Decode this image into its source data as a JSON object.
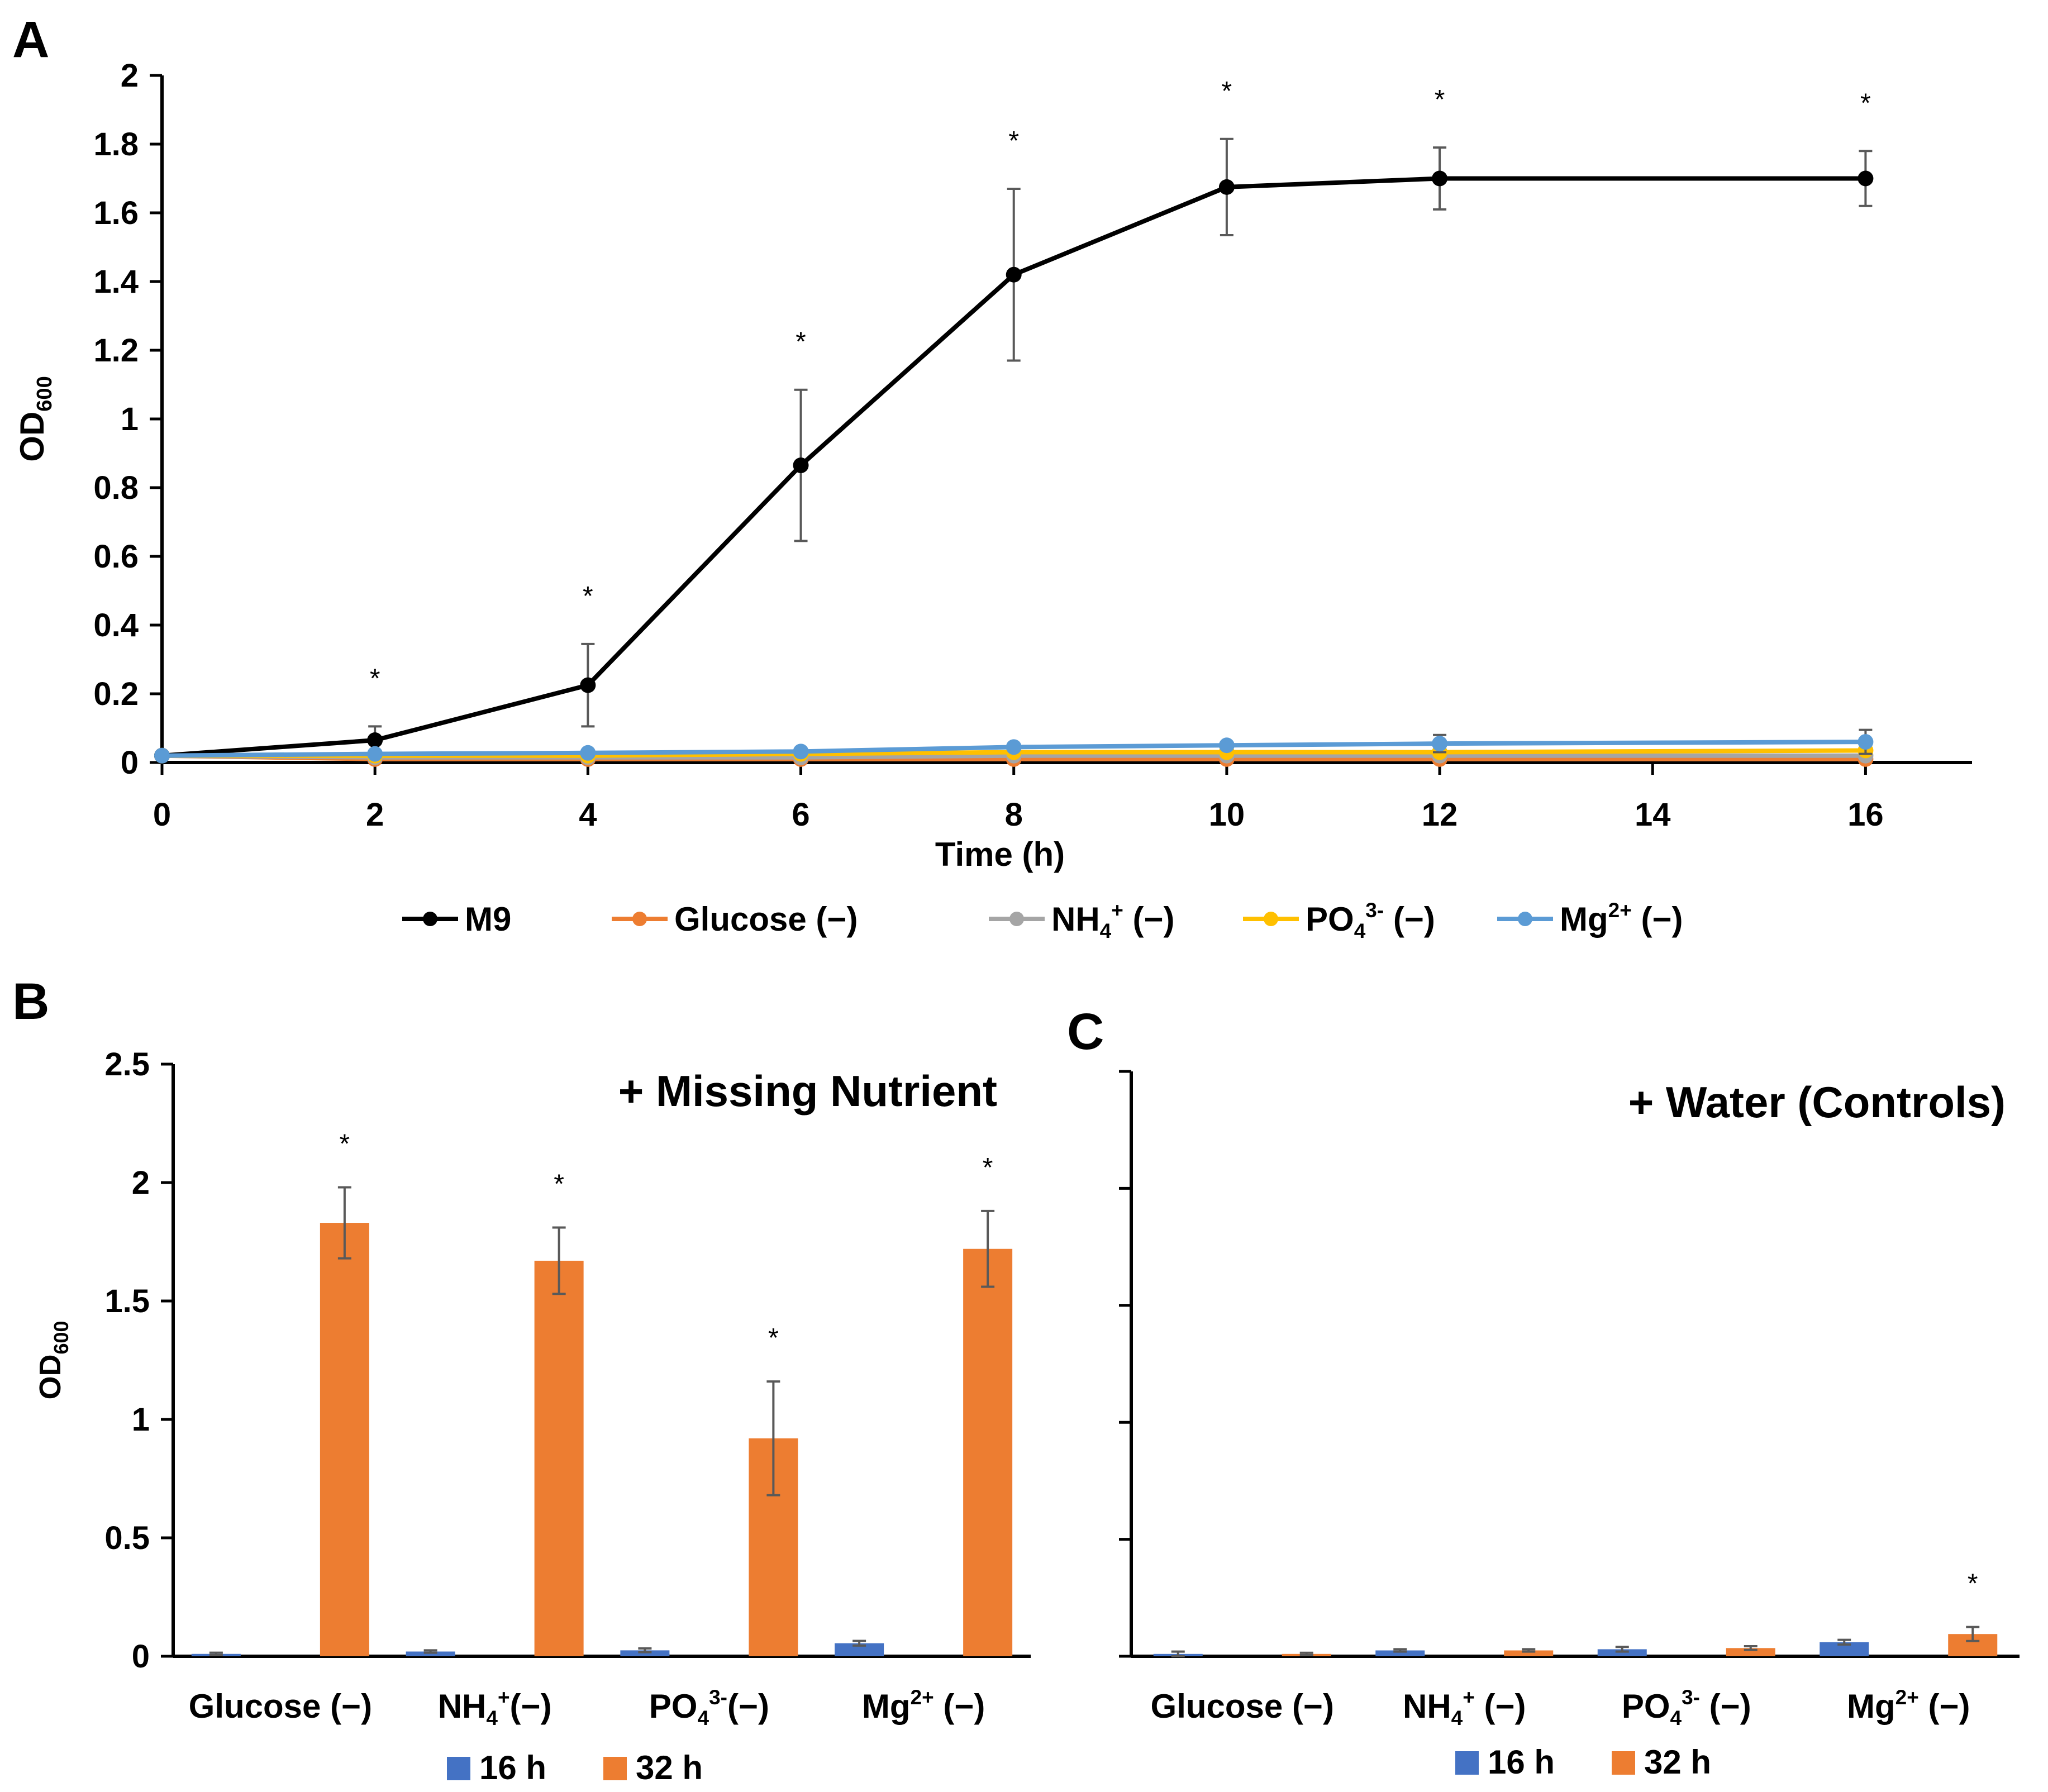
{
  "colors": {
    "M9": "#000000",
    "Glucose (−)": "#ED7D31",
    "NH4+ (−)": "#A5A5A5",
    "PO43- (−)": "#FFC000",
    "Mg2+ (−)": "#5B9BD5",
    "16 h": "#4472C4",
    "32 h": "#ED7D31",
    "errorbar": "#595959"
  },
  "chart_data": [
    {
      "panel": "A",
      "type": "line",
      "xlabel": "Time (h)",
      "ylabel": "OD",
      "ylabel_sub": "600",
      "xlim": [
        0,
        17
      ],
      "ylim": [
        0,
        2
      ],
      "x_ticks": [
        "0",
        "2",
        "4",
        "6",
        "8",
        "10",
        "12",
        "14",
        "16"
      ],
      "y_ticks": [
        "0",
        "0.2",
        "0.4",
        "0.6",
        "0.8",
        "1",
        "1.2",
        "1.4",
        "1.6",
        "1.8",
        "2"
      ],
      "x": [
        0,
        2,
        4,
        6,
        8,
        10,
        12,
        16
      ],
      "legend": "bottom",
      "series": [
        {
          "name": "M9",
          "label_main": "M9",
          "label_sup": "",
          "label_sub": "",
          "label_tail": "",
          "values": [
            0.02,
            0.065,
            0.225,
            0.865,
            1.42,
            1.675,
            1.7,
            1.7
          ],
          "errors": [
            0.005,
            0.04,
            0.12,
            0.22,
            0.25,
            0.14,
            0.09,
            0.08
          ]
        },
        {
          "name": "Glucose (−)",
          "label_main": "Glucose (−)",
          "label_sup": "",
          "label_sub": "",
          "label_tail": "",
          "values": [
            0.02,
            0.01,
            0.01,
            0.01,
            0.01,
            0.01,
            0.01,
            0.01
          ],
          "errors": [
            0,
            0,
            0,
            0,
            0,
            0,
            0,
            0
          ]
        },
        {
          "name": "NH4+ (−)",
          "label_main": "NH",
          "label_sub": "4",
          "label_sup": "+",
          "label_tail": " (−)",
          "values": [
            0.02,
            0.015,
            0.015,
            0.015,
            0.02,
            0.02,
            0.02,
            0.02
          ],
          "errors": [
            0,
            0,
            0,
            0,
            0,
            0,
            0,
            0
          ]
        },
        {
          "name": "PO43- (−)",
          "label_main": "PO",
          "label_sub": "4",
          "label_sup": "3-",
          "label_tail": " (−)",
          "values": [
            0.02,
            0.02,
            0.02,
            0.025,
            0.03,
            0.03,
            0.03,
            0.035
          ],
          "errors": [
            0,
            0,
            0,
            0,
            0,
            0,
            0,
            0
          ]
        },
        {
          "name": "Mg2+ (−)",
          "label_main": "Mg",
          "label_sub": "",
          "label_sup": "2+",
          "label_tail": " (−)",
          "values": [
            0.02,
            0.025,
            0.028,
            0.032,
            0.045,
            0.05,
            0.055,
            0.06
          ],
          "errors": [
            0,
            0,
            0,
            0,
            0,
            0,
            0.025,
            0.035
          ]
        }
      ],
      "significance": [
        "",
        "*",
        "*",
        "*",
        "*",
        "*",
        "*",
        "*"
      ]
    },
    {
      "panel": "B",
      "type": "bar",
      "title": "+ Missing Nutrient",
      "ylabel": "OD",
      "ylabel_sub": "600",
      "ylim": [
        0,
        2.5
      ],
      "y_ticks": [
        "0",
        "0.5",
        "1",
        "1.5",
        "2",
        "2.5"
      ],
      "categories": [
        "Glucose (−)",
        "NH4+ (−)",
        "PO43-(−)",
        "Mg2+ (−)"
      ],
      "category_labels": [
        {
          "main": "Glucose (−)",
          "sub": "",
          "sup": "",
          "tail": ""
        },
        {
          "main": "NH",
          "sub": "4",
          "sup": "+",
          "tail": "(−)"
        },
        {
          "main": "PO",
          "sub": "4",
          "sup": "3-",
          "tail": "(−)"
        },
        {
          "main": "Mg",
          "sub": "",
          "sup": "2+",
          "tail": " (−)"
        }
      ],
      "legend": "bottom",
      "series": [
        {
          "name": "16 h",
          "values": [
            0.01,
            0.02,
            0.025,
            0.055
          ],
          "errors": [
            0.005,
            0.005,
            0.008,
            0.01
          ]
        },
        {
          "name": "32 h",
          "values": [
            1.83,
            1.67,
            0.92,
            1.72
          ],
          "errors": [
            0.15,
            0.14,
            0.24,
            0.16
          ]
        }
      ],
      "significance": [
        "*",
        "*",
        "*",
        "*"
      ]
    },
    {
      "panel": "C",
      "type": "bar",
      "title": "+ Water (Controls)",
      "ylim": [
        0,
        2.5
      ],
      "y_ticks": [
        "",
        "",
        "",
        "",
        "",
        ""
      ],
      "categories": [
        "Glucose (−)",
        "NH4+ (−)",
        "PO43- (−)",
        "Mg2+ (−)"
      ],
      "category_labels": [
        {
          "main": "Glucose (−)",
          "sub": "",
          "sup": "",
          "tail": ""
        },
        {
          "main": "NH",
          "sub": "4",
          "sup": "+",
          "tail": " (−)"
        },
        {
          "main": "PO",
          "sub": "4",
          "sup": "3-",
          "tail": " (−)"
        },
        {
          "main": "Mg",
          "sub": "",
          "sup": "2+",
          "tail": " (−)"
        }
      ],
      "legend": "bottom",
      "series": [
        {
          "name": "16 h",
          "values": [
            0.01,
            0.025,
            0.03,
            0.06
          ],
          "errors": [
            0.01,
            0.005,
            0.01,
            0.01
          ]
        },
        {
          "name": "32 h",
          "values": [
            0.01,
            0.025,
            0.035,
            0.095
          ],
          "errors": [
            0.005,
            0.005,
            0.008,
            0.03
          ]
        }
      ],
      "significance": [
        "",
        "",
        "",
        "*"
      ]
    }
  ]
}
